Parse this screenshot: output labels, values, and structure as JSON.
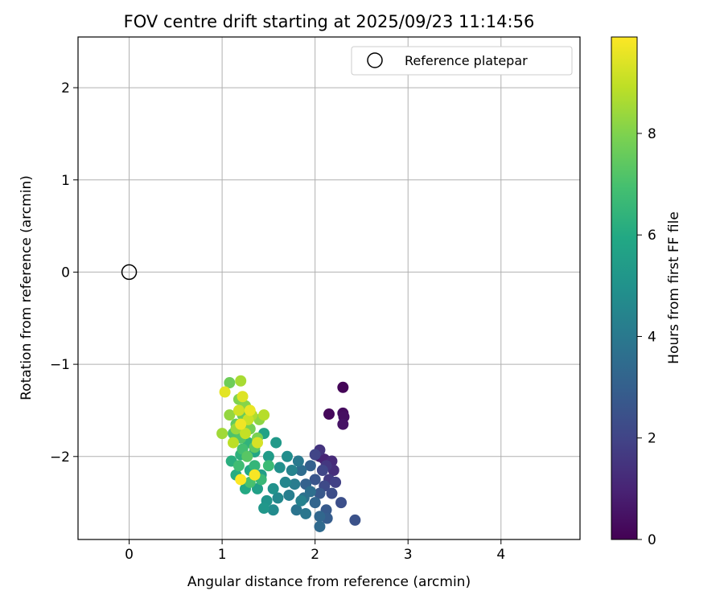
{
  "chart_data": {
    "type": "scatter",
    "title": "FOV centre drift starting at 2025/09/23 11:14:56",
    "xlabel": "Angular distance from reference (arcmin)",
    "ylabel": "Rotation from reference (arcmin)",
    "xlim": [
      -0.55,
      4.85
    ],
    "ylim": [
      -2.9,
      2.55
    ],
    "xticks": [
      0,
      1,
      2,
      3,
      4
    ],
    "yticks": [
      -2,
      -1,
      0,
      1,
      2
    ],
    "xtick_labels": [
      "0",
      "1",
      "2",
      "3",
      "4"
    ],
    "ytick_labels": [
      "−2",
      "−1",
      "0",
      "1",
      "2"
    ],
    "grid": true,
    "legend": {
      "position": "top-right",
      "entries": [
        "Reference platepar"
      ]
    },
    "reference_point": {
      "label": "Reference platepar",
      "x": 0,
      "y": 0
    },
    "colorbar": {
      "label": "Hours from first FF file",
      "range": [
        0,
        9.9
      ],
      "ticks": [
        0,
        2,
        4,
        6,
        8
      ],
      "tick_labels": [
        "0",
        "2",
        "4",
        "6",
        "8"
      ],
      "colormap": "viridis"
    },
    "points": [
      {
        "x": 2.3,
        "y": -1.25,
        "t": 0.1
      },
      {
        "x": 2.15,
        "y": -1.54,
        "t": 0.2
      },
      {
        "x": 2.3,
        "y": -1.53,
        "t": 0.3
      },
      {
        "x": 2.31,
        "y": -1.57,
        "t": 0.4
      },
      {
        "x": 2.3,
        "y": -1.65,
        "t": 0.5
      },
      {
        "x": 2.05,
        "y": -2.0,
        "t": 0.8
      },
      {
        "x": 2.1,
        "y": -2.03,
        "t": 1.0
      },
      {
        "x": 2.18,
        "y": -2.05,
        "t": 1.2
      },
      {
        "x": 2.2,
        "y": -2.15,
        "t": 1.3
      },
      {
        "x": 2.05,
        "y": -1.93,
        "t": 1.5
      },
      {
        "x": 2.12,
        "y": -2.1,
        "t": 1.6
      },
      {
        "x": 2.15,
        "y": -2.25,
        "t": 1.7
      },
      {
        "x": 2.22,
        "y": -2.28,
        "t": 1.9
      },
      {
        "x": 2.0,
        "y": -1.98,
        "t": 2.0
      },
      {
        "x": 2.08,
        "y": -2.15,
        "t": 2.1
      },
      {
        "x": 2.1,
        "y": -2.32,
        "t": 2.2
      },
      {
        "x": 2.18,
        "y": -2.4,
        "t": 2.3
      },
      {
        "x": 2.28,
        "y": -2.5,
        "t": 2.4
      },
      {
        "x": 2.43,
        "y": -2.69,
        "t": 2.5
      },
      {
        "x": 2.0,
        "y": -2.25,
        "t": 2.6
      },
      {
        "x": 2.05,
        "y": -2.4,
        "t": 2.7
      },
      {
        "x": 2.12,
        "y": -2.58,
        "t": 2.8
      },
      {
        "x": 2.13,
        "y": -2.67,
        "t": 2.9
      },
      {
        "x": 1.95,
        "y": -2.1,
        "t": 3.0
      },
      {
        "x": 1.9,
        "y": -2.3,
        "t": 3.1
      },
      {
        "x": 2.0,
        "y": -2.5,
        "t": 3.2
      },
      {
        "x": 2.05,
        "y": -2.65,
        "t": 3.3
      },
      {
        "x": 2.05,
        "y": -2.76,
        "t": 3.4
      },
      {
        "x": 1.85,
        "y": -2.15,
        "t": 3.5
      },
      {
        "x": 1.95,
        "y": -2.38,
        "t": 3.6
      },
      {
        "x": 1.88,
        "y": -2.45,
        "t": 3.7
      },
      {
        "x": 1.8,
        "y": -2.58,
        "t": 3.8
      },
      {
        "x": 1.9,
        "y": -2.62,
        "t": 3.9
      },
      {
        "x": 1.82,
        "y": -2.05,
        "t": 4.0
      },
      {
        "x": 1.78,
        "y": -2.3,
        "t": 4.1
      },
      {
        "x": 1.72,
        "y": -2.42,
        "t": 4.2
      },
      {
        "x": 1.85,
        "y": -2.48,
        "t": 4.3
      },
      {
        "x": 1.75,
        "y": -2.15,
        "t": 4.4
      },
      {
        "x": 1.68,
        "y": -2.28,
        "t": 4.5
      },
      {
        "x": 1.6,
        "y": -2.45,
        "t": 4.6
      },
      {
        "x": 1.55,
        "y": -2.58,
        "t": 4.7
      },
      {
        "x": 1.7,
        "y": -2.0,
        "t": 4.8
      },
      {
        "x": 1.62,
        "y": -2.12,
        "t": 4.9
      },
      {
        "x": 1.55,
        "y": -2.35,
        "t": 5.0
      },
      {
        "x": 1.48,
        "y": -2.48,
        "t": 5.1
      },
      {
        "x": 1.45,
        "y": -2.56,
        "t": 5.2
      },
      {
        "x": 1.58,
        "y": -1.85,
        "t": 5.3
      },
      {
        "x": 1.5,
        "y": -2.0,
        "t": 5.4
      },
      {
        "x": 1.42,
        "y": -2.2,
        "t": 5.5
      },
      {
        "x": 1.38,
        "y": -2.35,
        "t": 5.6
      },
      {
        "x": 1.45,
        "y": -1.75,
        "t": 5.7
      },
      {
        "x": 1.35,
        "y": -1.95,
        "t": 5.8
      },
      {
        "x": 1.3,
        "y": -2.15,
        "t": 5.9
      },
      {
        "x": 1.25,
        "y": -2.35,
        "t": 6.0
      },
      {
        "x": 1.15,
        "y": -2.2,
        "t": 6.1
      },
      {
        "x": 1.1,
        "y": -2.05,
        "t": 6.2
      },
      {
        "x": 1.2,
        "y": -1.98,
        "t": 6.3
      },
      {
        "x": 1.28,
        "y": -1.85,
        "t": 6.4
      },
      {
        "x": 1.35,
        "y": -2.1,
        "t": 6.5
      },
      {
        "x": 1.42,
        "y": -2.25,
        "t": 6.6
      },
      {
        "x": 1.5,
        "y": -2.1,
        "t": 6.7
      },
      {
        "x": 1.18,
        "y": -2.1,
        "t": 6.8
      },
      {
        "x": 1.22,
        "y": -1.92,
        "t": 6.9
      },
      {
        "x": 1.3,
        "y": -2.28,
        "t": 7.0
      },
      {
        "x": 1.12,
        "y": -1.75,
        "t": 7.1
      },
      {
        "x": 1.2,
        "y": -1.8,
        "t": 7.2
      },
      {
        "x": 1.27,
        "y": -2.0,
        "t": 7.3
      },
      {
        "x": 1.35,
        "y": -1.9,
        "t": 7.4
      },
      {
        "x": 1.15,
        "y": -1.65,
        "t": 7.5
      },
      {
        "x": 1.22,
        "y": -1.55,
        "t": 7.6
      },
      {
        "x": 1.08,
        "y": -1.2,
        "t": 7.7
      },
      {
        "x": 1.3,
        "y": -1.7,
        "t": 7.8
      },
      {
        "x": 1.38,
        "y": -1.8,
        "t": 7.9
      },
      {
        "x": 1.18,
        "y": -1.38,
        "t": 8.0
      },
      {
        "x": 1.25,
        "y": -1.45,
        "t": 8.1
      },
      {
        "x": 1.4,
        "y": -1.6,
        "t": 8.2
      },
      {
        "x": 1.08,
        "y": -1.55,
        "t": 8.3
      },
      {
        "x": 1.15,
        "y": -1.7,
        "t": 8.4
      },
      {
        "x": 1.0,
        "y": -1.75,
        "t": 8.5
      },
      {
        "x": 1.2,
        "y": -1.18,
        "t": 8.6
      },
      {
        "x": 1.32,
        "y": -1.55,
        "t": 8.7
      },
      {
        "x": 1.45,
        "y": -1.55,
        "t": 8.8
      },
      {
        "x": 1.12,
        "y": -1.85,
        "t": 8.9
      },
      {
        "x": 1.25,
        "y": -1.75,
        "t": 9.0
      },
      {
        "x": 1.28,
        "y": -1.6,
        "t": 9.1
      },
      {
        "x": 1.18,
        "y": -1.5,
        "t": 9.2
      },
      {
        "x": 1.38,
        "y": -1.85,
        "t": 9.3
      },
      {
        "x": 1.22,
        "y": -1.35,
        "t": 9.4
      },
      {
        "x": 1.03,
        "y": -1.3,
        "t": 9.5
      },
      {
        "x": 1.3,
        "y": -1.5,
        "t": 9.6
      },
      {
        "x": 1.2,
        "y": -1.65,
        "t": 9.7
      },
      {
        "x": 1.35,
        "y": -2.2,
        "t": 9.8
      },
      {
        "x": 1.2,
        "y": -2.25,
        "t": 9.9
      }
    ]
  }
}
